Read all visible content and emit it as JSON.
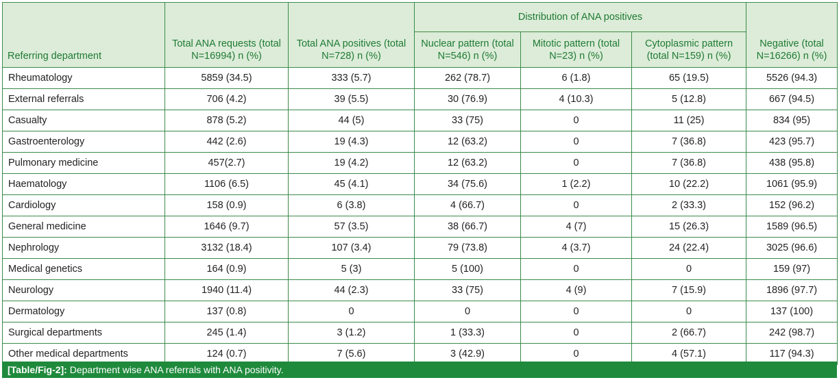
{
  "header": {
    "group_label": "Distribution of ANA positives",
    "columns": [
      "Referring department",
      "Total ANA requests (total N=16994) n (%)",
      "Total ANA positives (total N=728) n (%)",
      "Nuclear pattern (total N=546) n (%)",
      "Mitotic pattern (total N=23) n (%)",
      "Cytoplasmic pattern (total N=159) n (%)",
      "Negative (total N=16266) n (%)"
    ]
  },
  "rows": [
    [
      "Rheumatology",
      "5859 (34.5)",
      "333 (5.7)",
      "262 (78.7)",
      "6 (1.8)",
      "65 (19.5)",
      "5526 (94.3)"
    ],
    [
      "External referrals",
      "706 (4.2)",
      "39 (5.5)",
      "30 (76.9)",
      "4 (10.3)",
      "5 (12.8)",
      "667 (94.5)"
    ],
    [
      "Casualty",
      "878 (5.2)",
      "44 (5)",
      "33 (75)",
      "0",
      "11 (25)",
      "834 (95)"
    ],
    [
      "Gastroenterology",
      "442 (2.6)",
      "19 (4.3)",
      "12 (63.2)",
      "0",
      "7 (36.8)",
      "423 (95.7)"
    ],
    [
      "Pulmonary medicine",
      "457(2.7)",
      "19 (4.2)",
      "12 (63.2)",
      "0",
      "7 (36.8)",
      "438 (95.8)"
    ],
    [
      "Haematology",
      "1106 (6.5)",
      "45 (4.1)",
      "34 (75.6)",
      "1 (2.2)",
      "10 (22.2)",
      "1061 (95.9)"
    ],
    [
      "Cardiology",
      "158 (0.9)",
      "6 (3.8)",
      "4 (66.7)",
      "0",
      "2 (33.3)",
      "152 (96.2)"
    ],
    [
      "General medicine",
      "1646 (9.7)",
      "57 (3.5)",
      "38 (66.7)",
      "4 (7)",
      "15 (26.3)",
      "1589 (96.5)"
    ],
    [
      "Nephrology",
      "3132 (18.4)",
      "107 (3.4)",
      "79 (73.8)",
      "4 (3.7)",
      "24 (22.4)",
      "3025 (96.6)"
    ],
    [
      "Medical genetics",
      "164 (0.9)",
      "5 (3)",
      "5 (100)",
      "0",
      "0",
      "159 (97)"
    ],
    [
      "Neurology",
      "1940 (11.4)",
      "44 (2.3)",
      "33 (75)",
      "4 (9)",
      "7 (15.9)",
      "1896 (97.7)"
    ],
    [
      "Dermatology",
      "137 (0.8)",
      "0",
      "0",
      "0",
      "0",
      "137 (100)"
    ],
    [
      "Surgical departments",
      "245 (1.4)",
      "3 (1.2)",
      "1 (33.3)",
      "0",
      "2 (66.7)",
      "242 (98.7)"
    ],
    [
      "Other medical departments",
      "124 (0.7)",
      "7 (5.6)",
      "3 (42.9)",
      "0",
      "4 (57.1)",
      "117 (94.3)"
    ]
  ],
  "caption": {
    "label": "[Table/Fig-2]:",
    "text": " Department wise ANA referrals with ANA positivity."
  },
  "colors": {
    "header_bg": "#dcecd8",
    "header_text": "#1f7a34",
    "border": "#3a8a4a",
    "caption_bg": "#1f8a3c"
  }
}
